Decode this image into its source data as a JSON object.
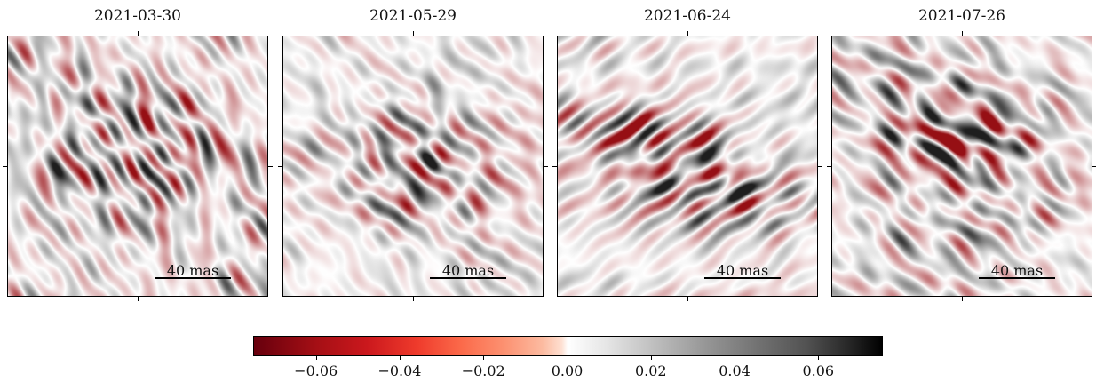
{
  "panels": [
    {
      "title": "2021-03-30",
      "scale_label": "40 mas"
    },
    {
      "title": "2021-05-29",
      "scale_label": "40 mas"
    },
    {
      "title": "2021-06-24",
      "scale_label": "40 mas"
    },
    {
      "title": "2021-07-26",
      "scale_label": "40 mas"
    }
  ],
  "colorbar": {
    "colormap": "RdGy_r",
    "ticks": [
      "−0.06",
      "−0.04",
      "−0.02",
      "0.00",
      "0.02",
      "0.04",
      "0.06"
    ],
    "range": [
      -0.075,
      0.075
    ]
  }
}
